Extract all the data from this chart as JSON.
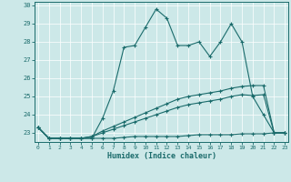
{
  "xlabel": "Humidex (Indice chaleur)",
  "background_color": "#cce8e8",
  "grid_color": "#b8d8d8",
  "line_color": "#1a6b6b",
  "x_values": [
    0,
    1,
    2,
    3,
    4,
    5,
    6,
    7,
    8,
    9,
    10,
    11,
    12,
    13,
    14,
    15,
    16,
    17,
    18,
    19,
    20,
    21,
    22,
    23
  ],
  "series1": [
    23.3,
    22.7,
    22.7,
    22.7,
    22.7,
    22.7,
    23.8,
    25.3,
    27.7,
    27.8,
    28.8,
    29.8,
    29.3,
    27.8,
    27.8,
    28.0,
    27.2,
    28.0,
    29.0,
    28.0,
    25.0,
    24.0,
    23.0,
    23.0
  ],
  "series2": [
    23.3,
    22.7,
    22.7,
    22.7,
    22.7,
    22.8,
    23.1,
    23.35,
    23.6,
    23.85,
    24.1,
    24.35,
    24.6,
    24.85,
    25.0,
    25.1,
    25.2,
    25.3,
    25.45,
    25.55,
    25.6,
    25.6,
    23.0,
    23.0
  ],
  "series3": [
    23.3,
    22.7,
    22.7,
    22.7,
    22.7,
    22.8,
    23.0,
    23.2,
    23.4,
    23.6,
    23.8,
    24.0,
    24.2,
    24.4,
    24.55,
    24.65,
    24.75,
    24.85,
    25.0,
    25.1,
    25.05,
    25.1,
    23.0,
    23.0
  ],
  "series4": [
    23.3,
    22.7,
    22.7,
    22.7,
    22.7,
    22.7,
    22.7,
    22.7,
    22.75,
    22.8,
    22.8,
    22.8,
    22.8,
    22.8,
    22.85,
    22.9,
    22.9,
    22.9,
    22.9,
    22.95,
    22.95,
    22.95,
    23.0,
    23.0
  ],
  "ylim": [
    22.5,
    30.2
  ],
  "yticks": [
    23,
    24,
    25,
    26,
    27,
    28,
    29,
    30
  ],
  "xlim": [
    -0.3,
    23.3
  ]
}
